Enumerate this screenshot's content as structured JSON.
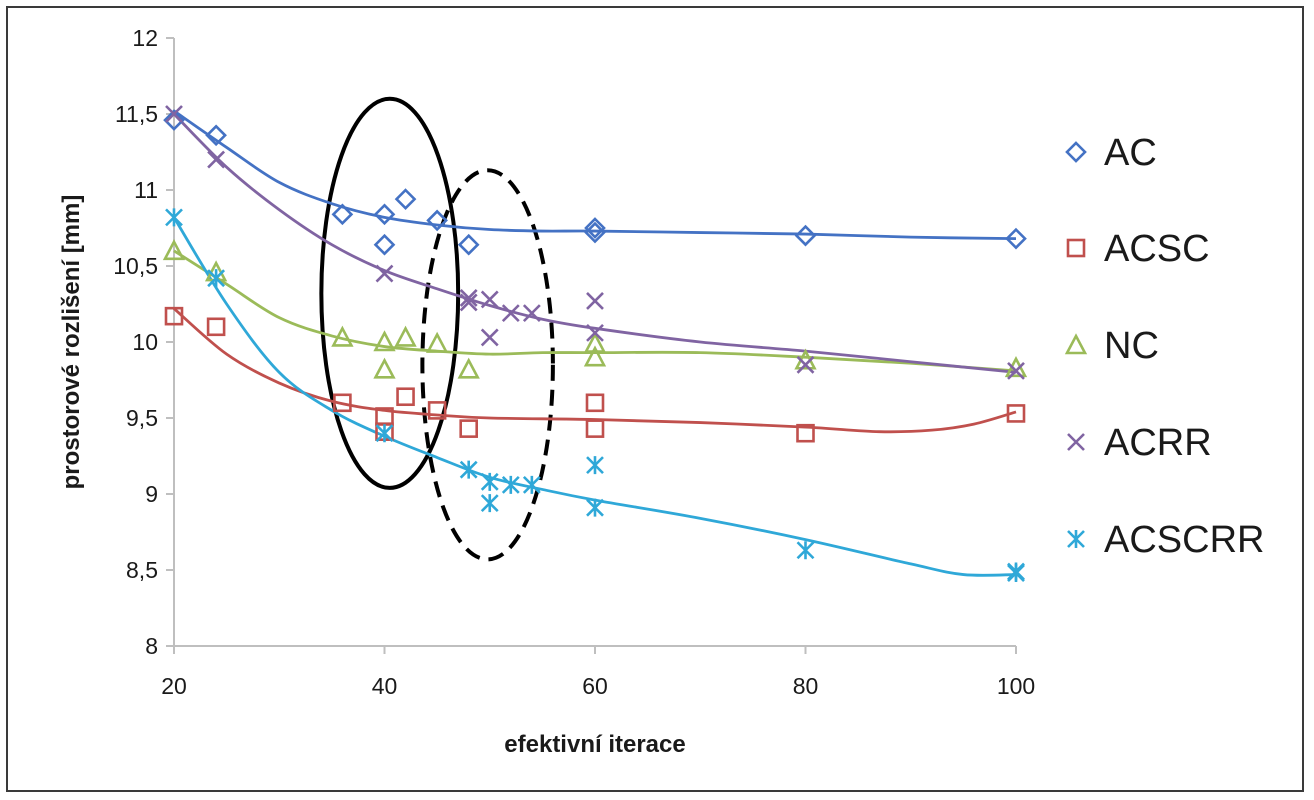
{
  "chart_data": {
    "type": "scatter",
    "xlabel": "efektivní iterace",
    "ylabel": "prostorové rozlišení [mm]",
    "xlim": [
      20,
      100
    ],
    "ylim": [
      8,
      12
    ],
    "x_ticks": [
      "20",
      "40",
      "60",
      "80",
      "100"
    ],
    "y_ticks": [
      "8",
      "8,5",
      "9",
      "9,5",
      "10",
      "10,5",
      "11",
      "11,5",
      "12"
    ],
    "grid": false,
    "legend_position": "right",
    "series": [
      {
        "name": "AC",
        "color": "#4472c4",
        "marker": "diamond",
        "points": [
          [
            20,
            11.46
          ],
          [
            24,
            11.36
          ],
          [
            36,
            10.84
          ],
          [
            40,
            10.84
          ],
          [
            40,
            10.64
          ],
          [
            42,
            10.94
          ],
          [
            45,
            10.8
          ],
          [
            48,
            10.64
          ],
          [
            60,
            10.75
          ],
          [
            60,
            10.72
          ],
          [
            80,
            10.7
          ],
          [
            100,
            10.68
          ]
        ],
        "trend": [
          [
            20,
            11.52
          ],
          [
            25,
            11.28
          ],
          [
            30,
            11.05
          ],
          [
            35,
            10.91
          ],
          [
            40,
            10.82
          ],
          [
            45,
            10.77
          ],
          [
            50,
            10.74
          ],
          [
            55,
            10.73
          ],
          [
            60,
            10.73
          ],
          [
            70,
            10.72
          ],
          [
            80,
            10.71
          ],
          [
            90,
            10.69
          ],
          [
            100,
            10.68
          ]
        ]
      },
      {
        "name": "ACSC",
        "color": "#c0504d",
        "marker": "square",
        "points": [
          [
            20,
            10.17
          ],
          [
            24,
            10.1
          ],
          [
            36,
            9.6
          ],
          [
            40,
            9.51
          ],
          [
            40,
            9.41
          ],
          [
            42,
            9.64
          ],
          [
            45,
            9.55
          ],
          [
            48,
            9.43
          ],
          [
            60,
            9.6
          ],
          [
            60,
            9.43
          ],
          [
            80,
            9.4
          ],
          [
            100,
            9.53
          ]
        ],
        "trend": [
          [
            20,
            10.22
          ],
          [
            25,
            9.92
          ],
          [
            30,
            9.73
          ],
          [
            35,
            9.61
          ],
          [
            40,
            9.55
          ],
          [
            45,
            9.52
          ],
          [
            50,
            9.5
          ],
          [
            60,
            9.49
          ],
          [
            70,
            9.47
          ],
          [
            80,
            9.44
          ],
          [
            87,
            9.41
          ],
          [
            92,
            9.42
          ],
          [
            96,
            9.46
          ],
          [
            100,
            9.54
          ]
        ]
      },
      {
        "name": "NC",
        "color": "#9bbb59",
        "marker": "triangle",
        "points": [
          [
            20,
            10.6
          ],
          [
            24,
            10.46
          ],
          [
            36,
            10.03
          ],
          [
            40,
            10.0
          ],
          [
            40,
            9.82
          ],
          [
            42,
            10.03
          ],
          [
            45,
            9.99
          ],
          [
            48,
            9.82
          ],
          [
            60,
            9.99
          ],
          [
            60,
            9.9
          ],
          [
            80,
            9.88
          ],
          [
            100,
            9.83
          ]
        ],
        "trend": [
          [
            20,
            10.6
          ],
          [
            25,
            10.38
          ],
          [
            30,
            10.16
          ],
          [
            35,
            10.04
          ],
          [
            40,
            9.97
          ],
          [
            45,
            9.94
          ],
          [
            50,
            9.92
          ],
          [
            55,
            9.93
          ],
          [
            60,
            9.93
          ],
          [
            70,
            9.93
          ],
          [
            80,
            9.9
          ],
          [
            90,
            9.86
          ],
          [
            100,
            9.81
          ]
        ]
      },
      {
        "name": "ACRR",
        "color": "#8064a2",
        "marker": "x",
        "points": [
          [
            20,
            11.5
          ],
          [
            24,
            11.2
          ],
          [
            40,
            10.45
          ],
          [
            48,
            10.29
          ],
          [
            48,
            10.26
          ],
          [
            50,
            10.28
          ],
          [
            50,
            10.03
          ],
          [
            52,
            10.19
          ],
          [
            54,
            10.19
          ],
          [
            60,
            10.27
          ],
          [
            60,
            10.06
          ],
          [
            80,
            9.85
          ],
          [
            100,
            9.81
          ]
        ],
        "trend": [
          [
            20,
            11.5
          ],
          [
            25,
            11.15
          ],
          [
            30,
            10.87
          ],
          [
            35,
            10.64
          ],
          [
            40,
            10.47
          ],
          [
            45,
            10.35
          ],
          [
            50,
            10.24
          ],
          [
            55,
            10.15
          ],
          [
            60,
            10.09
          ],
          [
            70,
            10.0
          ],
          [
            80,
            9.94
          ],
          [
            90,
            9.87
          ],
          [
            100,
            9.8
          ]
        ]
      },
      {
        "name": "ACSCRR",
        "color": "#2fa8d8",
        "marker": "asterisk",
        "points": [
          [
            20,
            10.82
          ],
          [
            24,
            10.42
          ],
          [
            40,
            9.4
          ],
          [
            48,
            9.16
          ],
          [
            50,
            9.08
          ],
          [
            50,
            8.94
          ],
          [
            52,
            9.06
          ],
          [
            54,
            9.06
          ],
          [
            60,
            9.19
          ],
          [
            60,
            8.91
          ],
          [
            80,
            8.63
          ],
          [
            100,
            8.49
          ],
          [
            100,
            8.48
          ]
        ],
        "trend": [
          [
            20,
            10.82
          ],
          [
            25,
            10.25
          ],
          [
            30,
            9.8
          ],
          [
            35,
            9.55
          ],
          [
            40,
            9.38
          ],
          [
            45,
            9.24
          ],
          [
            50,
            9.11
          ],
          [
            55,
            9.03
          ],
          [
            60,
            8.96
          ],
          [
            70,
            8.84
          ],
          [
            80,
            8.7
          ],
          [
            90,
            8.54
          ],
          [
            95,
            8.47
          ],
          [
            100,
            8.47
          ]
        ]
      }
    ],
    "annotations": [
      {
        "shape": "ellipse",
        "style": "solid",
        "center": [
          40.5,
          10.32
        ],
        "rx": 6.5,
        "ry": 1.28
      },
      {
        "shape": "ellipse",
        "style": "dashed",
        "center": [
          49.8,
          9.85
        ],
        "rx": 6.2,
        "ry": 1.28
      }
    ]
  }
}
